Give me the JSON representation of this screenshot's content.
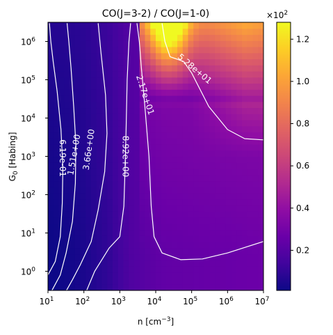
{
  "chart_data": {
    "type": "heatmap",
    "title": "CO(J=3-2) / CO(J=1-0)",
    "xlabel": "n [cm$^{-3}$]",
    "xlabel_parts": {
      "main": "n [cm",
      "sup": "−3",
      "close": "]"
    },
    "ylabel": "G$_0$ [Habing]",
    "ylabel_parts": {
      "main": "G",
      "sub": "0",
      "rest": " [Habing]"
    },
    "xscale": "log",
    "yscale": "log",
    "xlim": [
      10,
      10000000
    ],
    "ylim": [
      0.316,
      3162278
    ],
    "x_ticks": [
      {
        "value": 10,
        "base": "10",
        "exp": "1"
      },
      {
        "value": 100,
        "base": "10",
        "exp": "2"
      },
      {
        "value": 1000,
        "base": "10",
        "exp": "3"
      },
      {
        "value": 10000,
        "base": "10",
        "exp": "4"
      },
      {
        "value": 100000,
        "base": "10",
        "exp": "5"
      },
      {
        "value": 1000000,
        "base": "10",
        "exp": "6"
      },
      {
        "value": 10000000,
        "base": "10",
        "exp": "7"
      }
    ],
    "y_ticks": [
      {
        "value": 1,
        "base": "10",
        "exp": "0"
      },
      {
        "value": 10,
        "base": "10",
        "exp": "1"
      },
      {
        "value": 100,
        "base": "10",
        "exp": "2"
      },
      {
        "value": 1000,
        "base": "10",
        "exp": "3"
      },
      {
        "value": 10000,
        "base": "10",
        "exp": "4"
      },
      {
        "value": 100000,
        "base": "10",
        "exp": "5"
      },
      {
        "value": 1000000,
        "base": "10",
        "exp": "6"
      }
    ],
    "colormap": "plasma",
    "colorbar": {
      "range": [
        1,
        128
      ],
      "multiplier": {
        "base": "×10",
        "exp": "2"
      },
      "ticks": [
        {
          "value": 20,
          "label": "0.2"
        },
        {
          "value": 40,
          "label": "0.4"
        },
        {
          "value": 60,
          "label": "0.6"
        },
        {
          "value": 80,
          "label": "0.8"
        },
        {
          "value": 100,
          "label": "1.0"
        },
        {
          "value": 120,
          "label": "1.2"
        }
      ]
    },
    "contours": [
      {
        "level": 0.619,
        "label": "6.19e-01",
        "points": [
          [
            10,
            0.8
          ],
          [
            16,
            1.8
          ],
          [
            22,
            8
          ],
          [
            25,
            60
          ],
          [
            26,
            500
          ],
          [
            23,
            5000
          ],
          [
            18,
            50000
          ],
          [
            14,
            300000
          ],
          [
            12,
            1000000
          ],
          [
            11,
            3000000
          ]
        ]
      },
      {
        "level": 1.51,
        "label": "1.51e+00",
        "points": [
          [
            13,
            0.32
          ],
          [
            22,
            0.8
          ],
          [
            32,
            3
          ],
          [
            48,
            20
          ],
          [
            58,
            200
          ],
          [
            60,
            2000
          ],
          [
            52,
            20000
          ],
          [
            44,
            200000
          ],
          [
            38,
            1000000
          ],
          [
            34,
            3000000
          ]
        ]
      },
      {
        "level": 3.66,
        "label": "3.66e+00",
        "points": [
          [
            33,
            0.32
          ],
          [
            48,
            0.6
          ],
          [
            80,
            1.5
          ],
          [
            160,
            6
          ],
          [
            250,
            40
          ],
          [
            380,
            400
          ],
          [
            440,
            4000
          ],
          [
            400,
            40000
          ],
          [
            300,
            500000
          ],
          [
            250,
            3000000
          ]
        ]
      },
      {
        "level": 8.92,
        "label": "8.92e+00",
        "points": [
          [
            120,
            0.32
          ],
          [
            200,
            1
          ],
          [
            500,
            4
          ],
          [
            1000,
            8
          ],
          [
            1300,
            50
          ],
          [
            1400,
            500
          ],
          [
            1500,
            5000
          ],
          [
            1600,
            100000
          ],
          [
            1800,
            1000000
          ],
          [
            2000,
            3000000
          ]
        ]
      },
      {
        "level": 21.7,
        "label": "2.17e+01",
        "points": [
          [
            3000,
            3000000
          ],
          [
            3500,
            1000000
          ],
          [
            4000,
            200000
          ],
          [
            5000,
            20000
          ],
          [
            6500,
            1000
          ],
          [
            7500,
            50
          ],
          [
            9000,
            8
          ],
          [
            15000,
            3
          ],
          [
            50000,
            2
          ],
          [
            200000,
            2.1
          ],
          [
            1000000,
            3
          ],
          [
            10000000,
            6
          ]
        ]
      },
      {
        "level": 52.8,
        "label": "5.28e+01",
        "points": [
          [
            15000,
            3000000
          ],
          [
            18000,
            1000000
          ],
          [
            25000,
            400000
          ],
          [
            60000,
            300000
          ],
          [
            100000,
            150000
          ],
          [
            300000,
            20000
          ],
          [
            1000000,
            5000
          ],
          [
            3000000,
            2900
          ],
          [
            10000000,
            2700
          ]
        ]
      }
    ]
  }
}
